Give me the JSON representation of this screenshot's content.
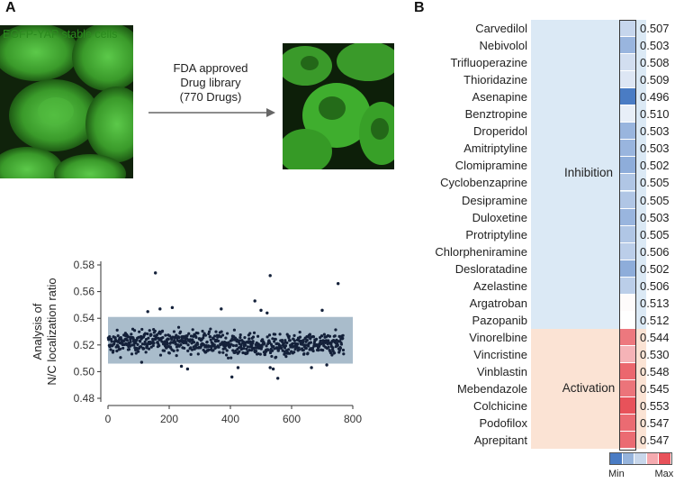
{
  "panel_a": {
    "letter": "A",
    "left_image_label": "EGFP-YAP stable cells",
    "flow_text": [
      "FDA approved",
      "Drug library",
      "(770 Drugs)"
    ]
  },
  "panel_b": {
    "letter": "B"
  },
  "colors": {
    "band": "#a9bccb",
    "point": "#14213a",
    "inhibition_bg": "#dbe9f5",
    "activation_bg": "#fbe3d4",
    "cell_green": "#3fae2e",
    "min_color": "#4a7cc4",
    "max_color": "#e8525a"
  },
  "chart_data": [
    {
      "type": "scatter",
      "title": "",
      "xlabel": "",
      "ylabel": "Analysis of\nN/C localization ratio",
      "ylabel_lines": [
        "Analysis of",
        "N/C localization ratio"
      ],
      "xlim": [
        0,
        800
      ],
      "ylim": [
        0.48,
        0.58
      ],
      "xticks": [
        0,
        200,
        400,
        600,
        800
      ],
      "yticks": [
        0.48,
        0.5,
        0.52,
        0.54,
        0.56,
        0.58
      ],
      "xtick_labels": [
        "0",
        "200",
        "400",
        "600",
        "800"
      ],
      "ytick_labels": [
        "0.48",
        "0.50",
        "0.52",
        "0.54",
        "0.56",
        "0.58"
      ],
      "band": [
        0.506,
        0.541
      ],
      "n_points": 770,
      "center": 0.521,
      "outliers": [
        {
          "x": 155,
          "y": 0.574
        },
        {
          "x": 530,
          "y": 0.572
        },
        {
          "x": 752,
          "y": 0.566
        },
        {
          "x": 480,
          "y": 0.553
        },
        {
          "x": 170,
          "y": 0.547
        },
        {
          "x": 210,
          "y": 0.548
        },
        {
          "x": 370,
          "y": 0.547
        },
        {
          "x": 500,
          "y": 0.546
        },
        {
          "x": 700,
          "y": 0.546
        },
        {
          "x": 130,
          "y": 0.545
        },
        {
          "x": 520,
          "y": 0.544
        },
        {
          "x": 405,
          "y": 0.496
        },
        {
          "x": 555,
          "y": 0.495
        },
        {
          "x": 530,
          "y": 0.503
        },
        {
          "x": 540,
          "y": 0.502
        },
        {
          "x": 240,
          "y": 0.504
        },
        {
          "x": 260,
          "y": 0.502
        },
        {
          "x": 425,
          "y": 0.503
        },
        {
          "x": 665,
          "y": 0.503
        },
        {
          "x": 715,
          "y": 0.505
        },
        {
          "x": 110,
          "y": 0.507
        }
      ]
    },
    {
      "type": "heatmap",
      "title": "",
      "groups": [
        {
          "name": "Inhibition",
          "start": 0,
          "end": 17
        },
        {
          "name": "Activation",
          "start": 18,
          "end": 24
        }
      ],
      "rows": [
        {
          "drug": "Carvedilol",
          "value": 0.507
        },
        {
          "drug": "Nebivolol",
          "value": 0.503
        },
        {
          "drug": "Trifluoperazine",
          "value": 0.508
        },
        {
          "drug": "Thioridazine",
          "value": 0.509
        },
        {
          "drug": "Asenapine",
          "value": 0.496
        },
        {
          "drug": "Benztropine",
          "value": 0.51
        },
        {
          "drug": "Droperidol",
          "value": 0.503
        },
        {
          "drug": "Amitriptyline",
          "value": 0.503
        },
        {
          "drug": "Clomipramine",
          "value": 0.502
        },
        {
          "drug": "Cyclobenzaprine",
          "value": 0.505
        },
        {
          "drug": "Desipramine",
          "value": 0.505
        },
        {
          "drug": "Duloxetine",
          "value": 0.503
        },
        {
          "drug": "Protriptyline",
          "value": 0.505
        },
        {
          "drug": "Chlorpheniramine",
          "value": 0.506
        },
        {
          "drug": "Desloratadine",
          "value": 0.502
        },
        {
          "drug": "Azelastine",
          "value": 0.506
        },
        {
          "drug": "Argatroban",
          "value": 0.513
        },
        {
          "drug": "Pazopanib",
          "value": 0.512
        },
        {
          "drug": "Vinorelbine",
          "value": 0.544
        },
        {
          "drug": "Vincristine",
          "value": 0.53
        },
        {
          "drug": "Vinblastin",
          "value": 0.548
        },
        {
          "drug": "Mebendazole",
          "value": 0.545
        },
        {
          "drug": "Colchicine",
          "value": 0.553
        },
        {
          "drug": "Podofilox",
          "value": 0.547
        },
        {
          "drug": "Aprepitant",
          "value": 0.547
        }
      ],
      "value_labels": [
        "0.507",
        "0.503",
        "0.508",
        "0.509",
        "0.496",
        "0.510",
        "0.503",
        "0.503",
        "0.502",
        "0.505",
        "0.505",
        "0.503",
        "0.505",
        "0.506",
        "0.502",
        "0.506",
        "0.513",
        "0.512",
        "0.544",
        "0.530",
        "0.548",
        "0.545",
        "0.553",
        "0.547",
        "0.547"
      ],
      "legend": {
        "min_label": "Min",
        "max_label": "Max"
      }
    }
  ]
}
